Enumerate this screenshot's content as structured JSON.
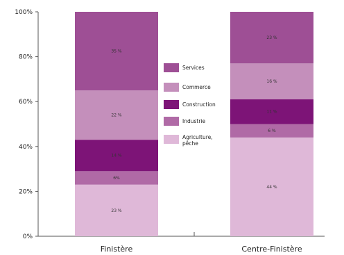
{
  "chart_data": {
    "type": "bar",
    "stacked": true,
    "categories": [
      "Finistère",
      "Centre-Finistère"
    ],
    "series": [
      {
        "name": "Agriculture, pêche",
        "values": [
          23,
          44
        ],
        "labels": [
          "23 %",
          "44 %"
        ],
        "color": "#dfb8d8"
      },
      {
        "name": "Industrie",
        "values": [
          6,
          6
        ],
        "labels": [
          "6%",
          "6 %"
        ],
        "color": "#b06aa6"
      },
      {
        "name": "Construction",
        "values": [
          14,
          11
        ],
        "labels": [
          "14 %",
          "11 %"
        ],
        "color": "#7d1477"
      },
      {
        "name": "Commerce",
        "values": [
          22,
          16
        ],
        "labels": [
          "22 %",
          "16 %"
        ],
        "color": "#c48fbb"
      },
      {
        "name": "Services",
        "values": [
          35,
          23
        ],
        "labels": [
          "35 %",
          "23 %"
        ],
        "color": "#9e4f95"
      }
    ],
    "legend_order": [
      "Services",
      "Commerce",
      "Construction",
      "Industrie",
      "Agriculture, pêche"
    ],
    "legend_position": "center",
    "ylim": [
      0,
      100
    ],
    "yticks": [
      0,
      20,
      40,
      60,
      80,
      100
    ],
    "ytick_labels": [
      "0%",
      "20%",
      "40%",
      "60%",
      "80%",
      "100%"
    ],
    "grid": false
  }
}
